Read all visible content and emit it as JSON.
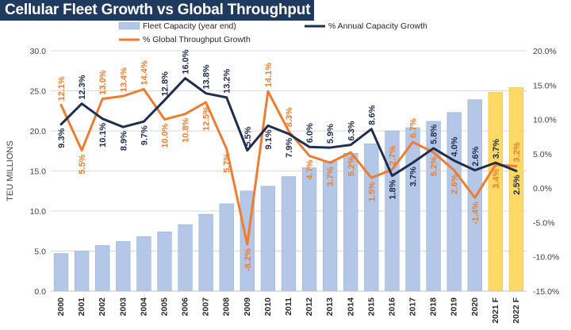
{
  "chart_data": {
    "type": "bar+line",
    "title": "Cellular Fleet Growth vs Global Throughput",
    "ylabel_left": "TEU MILLIONS",
    "ylim_left": [
      0,
      30
    ],
    "yticks_left": [
      "0.0",
      "5.0",
      "10.0",
      "15.0",
      "20.0",
      "25.0",
      "30.0"
    ],
    "ylim_right": [
      -15,
      20
    ],
    "yticks_right": [
      "-15.0%",
      "-10.0%",
      "-5.0%",
      "0.0%",
      "5.0%",
      "10.0%",
      "15.0%",
      "20.0%"
    ],
    "grid": true,
    "categories": [
      "2000",
      "2001",
      "2002",
      "2003",
      "2004",
      "2005",
      "2006",
      "2007",
      "2008",
      "2009",
      "2010",
      "2011",
      "2012",
      "2013",
      "2014",
      "2015",
      "2016",
      "2017",
      "2018",
      "2019",
      "2020",
      "2021 F",
      "2022 F"
    ],
    "colors": {
      "bar": "#b4c7e7",
      "bar_forecast": "#ffd966",
      "capacity_line": "#1f2d4f",
      "throughput_line": "#ed7d31",
      "title_bg": "#1f3a5f",
      "grid": "#d9d9d9"
    },
    "series": [
      {
        "name": "Fleet Capacity (year end)",
        "kind": "bar",
        "axis": "left",
        "values": [
          4.7,
          5.0,
          5.7,
          6.2,
          6.8,
          7.4,
          8.3,
          9.6,
          10.9,
          12.5,
          13.1,
          14.3,
          15.4,
          16.2,
          17.2,
          18.4,
          20.0,
          20.4,
          21.2,
          22.3,
          23.9,
          24.8,
          25.4
        ]
      },
      {
        "name": "% Annual Capacity Growth",
        "kind": "line",
        "axis": "right",
        "values": [
          9.3,
          12.3,
          10.1,
          8.9,
          9.7,
          12.8,
          16.0,
          13.8,
          13.2,
          5.5,
          9.1,
          7.9,
          6.0,
          5.9,
          6.3,
          8.6,
          1.8,
          3.7,
          5.8,
          4.0,
          2.6,
          3.7,
          2.5
        ],
        "labels": [
          "9.3%",
          "12.3%",
          "10.1%",
          "8.9%",
          "9.7%",
          "12.8%",
          "16.0%",
          "13.8%",
          "13.2%",
          "5.5%",
          "9.1%",
          "7.9%",
          "6.0%",
          "5.9%",
          "6.3%",
          "8.6%",
          "1.8%",
          "3.7%",
          "5.8%",
          "4.0%",
          "2.6%",
          "3.7%",
          "2.5%"
        ]
      },
      {
        "name": "% Global Throughput Growth",
        "kind": "line",
        "axis": "right",
        "values": [
          12.1,
          5.5,
          13.0,
          13.4,
          14.4,
          10.0,
          10.8,
          12.5,
          5.7,
          -8.2,
          14.1,
          8.3,
          4.7,
          3.7,
          5.2,
          1.5,
          2.7,
          6.7,
          5.2,
          2.6,
          -1.4,
          3.4,
          3.2
        ],
        "labels": [
          "12.1%",
          "5.5%",
          "13.0%",
          "13.4%",
          "14.4%",
          "10.0%",
          "10.8%",
          "12.5%",
          "5.7%",
          "-8.2%",
          "14.1%",
          "8.3%",
          "4.7%",
          "3.7%",
          "5.2%",
          "1.5%",
          "2.7%",
          "6.7%",
          "5.2%",
          "2.6%",
          "-1.4%",
          "3.4%",
          "3.2%"
        ]
      }
    ],
    "legend": [
      "Fleet Capacity (year end)",
      "% Annual Capacity Growth",
      "% Global Throughput Growth"
    ]
  }
}
